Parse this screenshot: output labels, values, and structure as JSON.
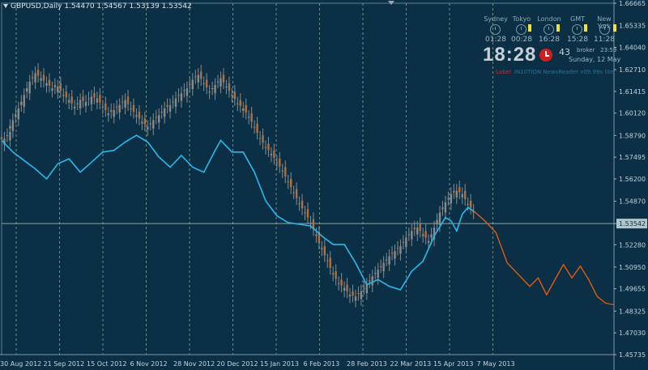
{
  "window": {
    "symbol": "GBPUSD,Daily",
    "open": "1.54470",
    "high": "1.54567",
    "low": "1.53139",
    "close": "1.53542"
  },
  "price_axis": {
    "labels": [
      "1.66665",
      "1.65335",
      "1.64040",
      "1.62710",
      "1.61415",
      "1.60120",
      "1.58790",
      "1.57495",
      "1.56200",
      "1.54870",
      "1.53542",
      "1.52280",
      "1.50950",
      "1.49655",
      "1.48325",
      "1.47030",
      "1.45735"
    ],
    "current_price_label": "1.53542",
    "label_bg_current": "#b0c4cc"
  },
  "time_axis": {
    "labels": [
      "30 Aug 2012",
      "21 Sep 2012",
      "15 Oct 2012",
      "6 Nov 2012",
      "28 Nov 2012",
      "20 Dec 2012",
      "15 Jan 2013",
      "6 Feb 2013",
      "28 Feb 2013",
      "22 Mar 2013",
      "15 Apr 2013",
      "7 May 2013"
    ]
  },
  "colors": {
    "background": "#0b3045",
    "grid": "#6f8c8c",
    "candles": "#8a8a8a",
    "candle_orange": "#b07040",
    "overlay_line": "#2ab8ec",
    "projection_line": "#e05a10",
    "price_line": "#8fa3a3"
  },
  "clock": {
    "cities": [
      {
        "name": "Sydney",
        "time": "01:28"
      },
      {
        "name": "Tokyo",
        "time": "00:28"
      },
      {
        "name": "London",
        "time": "16:28"
      },
      {
        "name": "GMT",
        "time": "15:28"
      },
      {
        "name": "New York",
        "time": "11:28"
      }
    ],
    "local_time": "18:28",
    "seconds": "43",
    "broker_label": "broker",
    "broker_time": "23:59",
    "date": "Sunday, 12 May",
    "alarm_icon": "alarm-clock-icon",
    "label_text": "Label",
    "news_text": "IN10TION NewsReader v09.99s lite"
  },
  "chart_data": {
    "type": "candlestick",
    "title": "GBPUSD,Daily",
    "ohlc_last": {
      "open": 1.5447,
      "high": 1.54567,
      "low": 1.53139,
      "close": 1.53542
    },
    "ylim": [
      1.45735,
      1.66665
    ],
    "current_price": 1.53542,
    "x": [
      "30 Aug 2012",
      "21 Sep 2012",
      "15 Oct 2012",
      "6 Nov 2012",
      "28 Nov 2012",
      "20 Dec 2012",
      "15 Jan 2013",
      "6 Feb 2013",
      "28 Feb 2013",
      "22 Mar 2013",
      "15 Apr 2013",
      "7 May 2013"
    ],
    "series": [
      {
        "type": "candlestick",
        "color": "#8a8a8a",
        "close_path": [
          [
            0,
            1.585
          ],
          [
            2,
            1.586
          ],
          [
            3,
            1.59
          ],
          [
            5,
            1.597
          ],
          [
            7,
            1.604
          ],
          [
            9,
            1.612
          ],
          [
            11,
            1.62
          ],
          [
            13,
            1.625
          ],
          [
            15,
            1.622
          ],
          [
            17,
            1.619
          ],
          [
            19,
            1.616
          ],
          [
            21,
            1.617
          ],
          [
            23,
            1.612
          ],
          [
            25,
            1.609
          ],
          [
            27,
            1.605
          ],
          [
            29,
            1.609
          ],
          [
            31,
            1.608
          ],
          [
            33,
            1.611
          ],
          [
            35,
            1.61
          ],
          [
            37,
            1.605
          ],
          [
            39,
            1.601
          ],
          [
            41,
            1.603
          ],
          [
            43,
            1.606
          ],
          [
            45,
            1.609
          ],
          [
            47,
            1.604
          ],
          [
            49,
            1.6
          ],
          [
            51,
            1.596
          ],
          [
            53,
            1.593
          ],
          [
            55,
            1.597
          ],
          [
            57,
            1.6
          ],
          [
            59,
            1.604
          ],
          [
            61,
            1.606
          ],
          [
            63,
            1.61
          ],
          [
            65,
            1.613
          ],
          [
            67,
            1.616
          ],
          [
            69,
            1.621
          ],
          [
            71,
            1.624
          ],
          [
            73,
            1.619
          ],
          [
            75,
            1.614
          ],
          [
            77,
            1.618
          ],
          [
            79,
            1.622
          ],
          [
            81,
            1.617
          ],
          [
            83,
            1.612
          ],
          [
            85,
            1.607
          ],
          [
            87,
            1.604
          ],
          [
            89,
            1.599
          ],
          [
            91,
            1.593
          ],
          [
            93,
            1.586
          ],
          [
            95,
            1.581
          ],
          [
            97,
            1.577
          ],
          [
            99,
            1.572
          ],
          [
            101,
            1.567
          ],
          [
            103,
            1.56
          ],
          [
            105,
            1.554
          ],
          [
            107,
            1.547
          ],
          [
            109,
            1.542
          ],
          [
            111,
            1.536
          ],
          [
            113,
            1.528
          ],
          [
            115,
            1.52
          ],
          [
            117,
            1.513
          ],
          [
            119,
            1.505
          ],
          [
            121,
            1.5
          ],
          [
            123,
            1.497
          ],
          [
            125,
            1.493
          ],
          [
            127,
            1.492
          ],
          [
            129,
            1.495
          ],
          [
            131,
            1.499
          ],
          [
            133,
            1.504
          ],
          [
            135,
            1.508
          ],
          [
            137,
            1.512
          ],
          [
            139,
            1.516
          ],
          [
            141,
            1.519
          ],
          [
            143,
            1.522
          ],
          [
            145,
            1.527
          ],
          [
            147,
            1.531
          ],
          [
            149,
            1.533
          ],
          [
            151,
            1.529
          ],
          [
            153,
            1.525
          ],
          [
            155,
            1.533
          ],
          [
            157,
            1.542
          ],
          [
            159,
            1.548
          ],
          [
            161,
            1.553
          ],
          [
            163,
            1.555
          ],
          [
            165,
            1.553
          ],
          [
            167,
            1.547
          ],
          [
            168,
            1.543
          ]
        ]
      },
      {
        "type": "line",
        "color": "#2ab8ec",
        "points": [
          [
            0,
            1.585
          ],
          [
            4,
            1.578
          ],
          [
            8,
            1.573
          ],
          [
            12,
            1.568
          ],
          [
            16,
            1.562
          ],
          [
            20,
            1.571
          ],
          [
            24,
            1.574
          ],
          [
            28,
            1.566
          ],
          [
            32,
            1.572
          ],
          [
            36,
            1.578
          ],
          [
            40,
            1.579
          ],
          [
            44,
            1.584
          ],
          [
            48,
            1.588
          ],
          [
            52,
            1.584
          ],
          [
            56,
            1.575
          ],
          [
            60,
            1.569
          ],
          [
            64,
            1.576
          ],
          [
            68,
            1.569
          ],
          [
            72,
            1.566
          ],
          [
            76,
            1.579
          ],
          [
            78,
            1.585
          ],
          [
            82,
            1.578
          ],
          [
            86,
            1.578
          ],
          [
            90,
            1.566
          ],
          [
            94,
            1.549
          ],
          [
            98,
            1.54
          ],
          [
            102,
            1.536
          ],
          [
            106,
            1.535
          ],
          [
            110,
            1.534
          ],
          [
            114,
            1.528
          ],
          [
            118,
            1.523
          ],
          [
            122,
            1.523
          ],
          [
            126,
            1.512
          ],
          [
            130,
            1.499
          ],
          [
            134,
            1.502
          ],
          [
            138,
            1.498
          ],
          [
            142,
            1.496
          ],
          [
            146,
            1.507
          ],
          [
            150,
            1.513
          ],
          [
            154,
            1.528
          ],
          [
            158,
            1.539
          ],
          [
            160,
            1.537
          ],
          [
            162,
            1.531
          ],
          [
            164,
            1.541
          ],
          [
            166,
            1.545
          ],
          [
            168,
            1.543
          ]
        ]
      },
      {
        "type": "line",
        "color": "#e05a10",
        "points": [
          [
            168,
            1.543
          ],
          [
            172,
            1.537
          ],
          [
            176,
            1.53
          ],
          [
            180,
            1.512
          ],
          [
            184,
            1.505
          ],
          [
            188,
            1.498
          ],
          [
            191,
            1.503
          ],
          [
            194,
            1.493
          ],
          [
            197,
            1.502
          ],
          [
            200,
            1.511
          ],
          [
            203,
            1.503
          ],
          [
            206,
            1.51
          ],
          [
            209,
            1.502
          ],
          [
            212,
            1.492
          ],
          [
            215,
            1.488
          ],
          [
            218,
            1.487
          ]
        ]
      }
    ],
    "grid": true
  }
}
